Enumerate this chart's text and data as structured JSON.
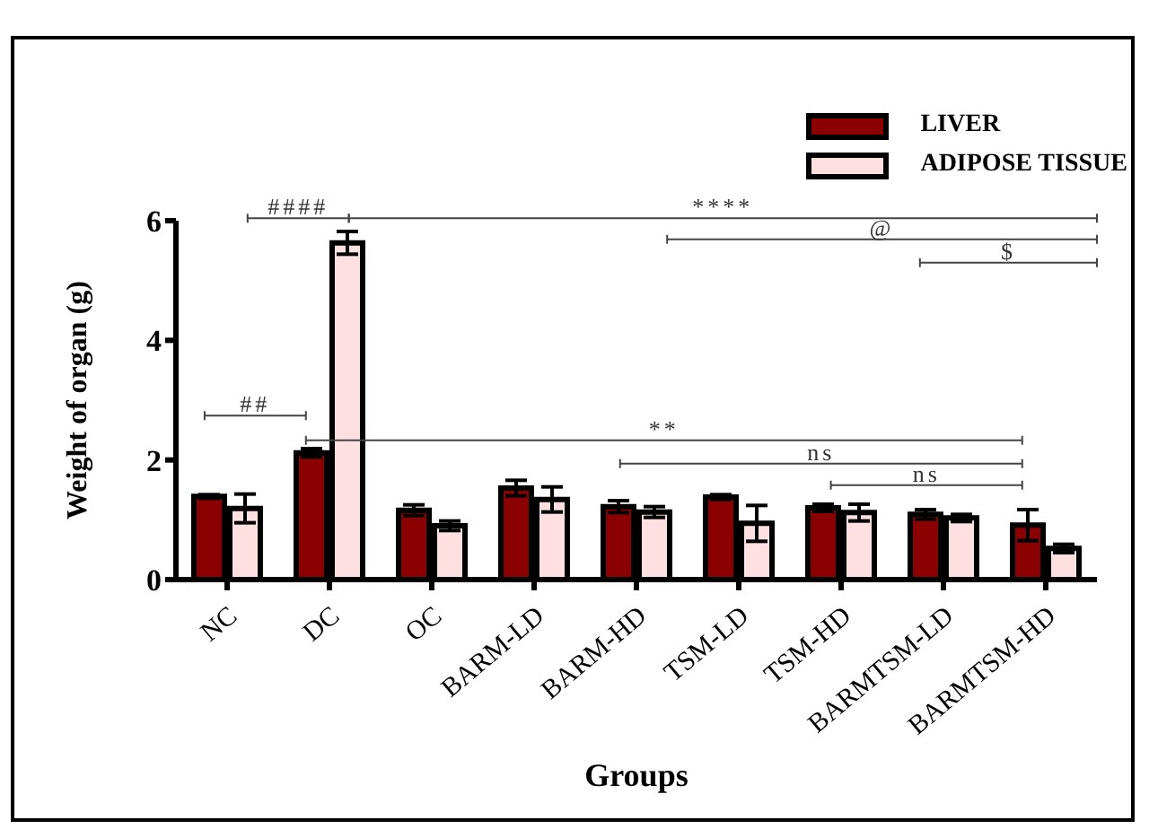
{
  "chart_data": {
    "type": "bar",
    "xlabel": "Groups",
    "ylabel": "Weight of organ (g)",
    "categories": [
      "NC",
      "DC",
      "OC",
      "BARM-LD",
      "BARM-HD",
      "TSM-LD",
      "TSM-HD",
      "BARMTSM-LD",
      "BARMTSM-HD"
    ],
    "series": [
      {
        "name": "LIVER",
        "color": "#8b0000",
        "values": [
          1.39,
          2.12,
          1.16,
          1.53,
          1.22,
          1.38,
          1.2,
          1.09,
          0.91
        ],
        "errors": [
          0.03,
          0.07,
          0.09,
          0.13,
          0.1,
          0.04,
          0.06,
          0.08,
          0.26
        ]
      },
      {
        "name": "ADIPOSE TISSUE",
        "color": "#ffe0e0",
        "values": [
          1.19,
          5.63,
          0.9,
          1.34,
          1.13,
          0.94,
          1.12,
          1.03,
          0.52
        ],
        "errors": [
          0.24,
          0.19,
          0.08,
          0.21,
          0.09,
          0.3,
          0.14,
          0.06,
          0.07
        ]
      }
    ],
    "ylim": [
      0,
      6
    ],
    "yticks": [
      0,
      2,
      4,
      6
    ],
    "grid": false,
    "legend": "top right",
    "annotations": [
      "####",
      "****",
      "@",
      "$",
      "##",
      "**",
      "ns",
      "ns"
    ]
  }
}
